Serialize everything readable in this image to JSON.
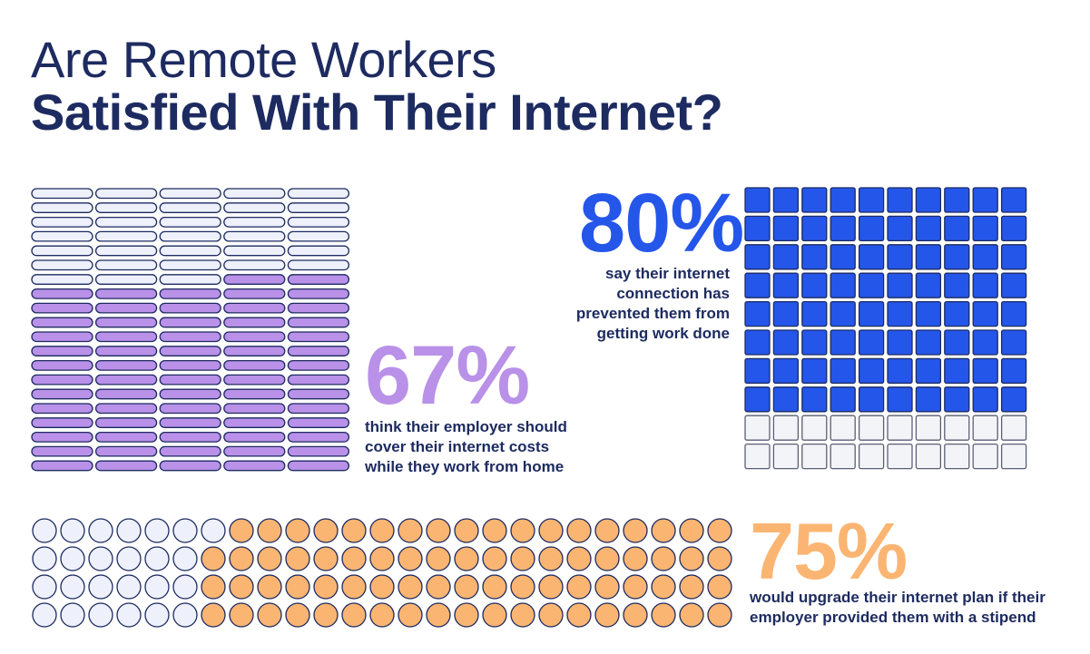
{
  "title": {
    "line1": "Are Remote Workers",
    "line2": "Satisfied With Their Internet?"
  },
  "colors": {
    "navy": "#1d2b60",
    "purple": "#b991e8",
    "blue": "#2556ea",
    "orange": "#fbb572",
    "empty_fill": "#eef1fb"
  },
  "chart_data": [
    {
      "type": "waffle",
      "shape": "rounded-bar",
      "grid": {
        "rows": 20,
        "cols": 5
      },
      "total": 100,
      "filled": 67,
      "fill_from": "bottom",
      "percent_label": "67%",
      "caption": [
        "think their employer should",
        "cover their internet costs",
        "while they work from home"
      ],
      "color": "#b991e8"
    },
    {
      "type": "waffle",
      "shape": "square",
      "grid": {
        "rows": 10,
        "cols": 10
      },
      "total": 100,
      "filled": 80,
      "fill_from": "top",
      "percent_label": "80%",
      "caption": [
        "say their internet",
        "connection has",
        "prevented them from",
        "getting work done"
      ],
      "color": "#2556ea"
    },
    {
      "type": "waffle",
      "shape": "circle",
      "grid": {
        "rows": 4,
        "cols": 25
      },
      "total": 100,
      "filled": 75,
      "fill_from": "right",
      "percent_label": "75%",
      "caption": [
        "would upgrade their internet plan if their",
        "employer provided them with a stipend"
      ],
      "color": "#fbb572"
    }
  ]
}
